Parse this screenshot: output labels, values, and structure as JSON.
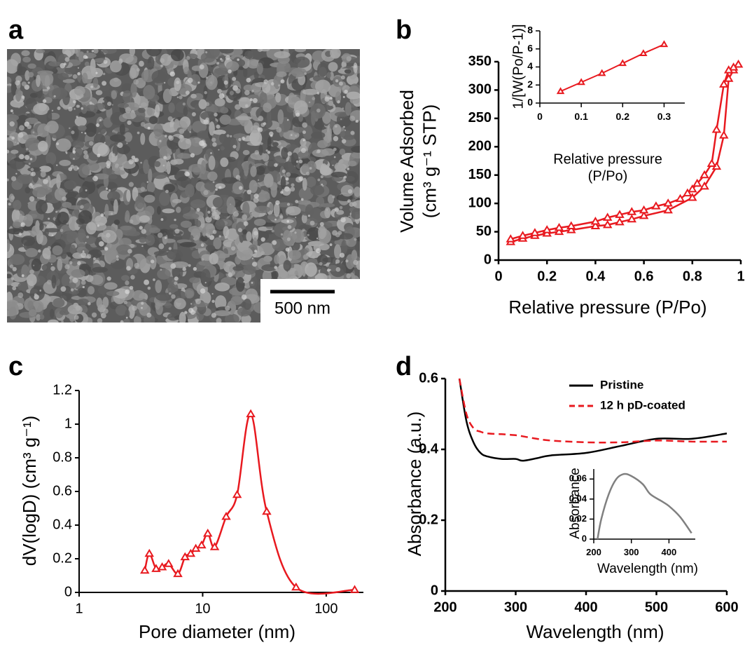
{
  "chart_data": [
    {
      "type": "image",
      "panel": "a",
      "scale_bar": "500 nm"
    },
    {
      "type": "line",
      "panel": "b",
      "x_label": "Relative pressure (P/Po)",
      "y_label": [
        "Volume Adsorbed",
        "(cm³ g⁻¹ STP)"
      ],
      "xlim": [
        0,
        1
      ],
      "ylim": [
        0,
        350
      ],
      "xticks": [
        0,
        0.2,
        0.4,
        0.6,
        0.8,
        1
      ],
      "yticks": [
        0,
        50,
        100,
        150,
        200,
        250,
        300,
        350
      ],
      "marker": "triangle",
      "series": [
        {
          "color": "#e8191f",
          "x": [
            0.05,
            0.1,
            0.15,
            0.2,
            0.25,
            0.3,
            0.4,
            0.45,
            0.5,
            0.55,
            0.6,
            0.7,
            0.8,
            0.85,
            0.9,
            0.93,
            0.95,
            0.97,
            0.99
          ],
          "values": [
            32,
            38,
            43,
            47,
            50,
            53,
            60,
            62,
            67,
            72,
            78,
            88,
            110,
            130,
            165,
            220,
            320,
            335,
            345
          ]
        },
        {
          "color": "#e8191f",
          "x": [
            0.99,
            0.97,
            0.95,
            0.93,
            0.9,
            0.88,
            0.85,
            0.82,
            0.8,
            0.78,
            0.75,
            0.7,
            0.65,
            0.6,
            0.55,
            0.5,
            0.45,
            0.4,
            0.3,
            0.25,
            0.2,
            0.15,
            0.1,
            0.05
          ],
          "values": [
            345,
            340,
            335,
            310,
            230,
            170,
            150,
            135,
            125,
            118,
            108,
            100,
            95,
            88,
            85,
            80,
            75,
            68,
            60,
            57,
            53,
            48,
            43,
            37
          ]
        }
      ],
      "inset": {
        "type": "line",
        "x_label": [
          "Relative pressure",
          "(P/Po)"
        ],
        "y_label": "1/[W(Po/P-1)]",
        "xlim": [
          0,
          0.35
        ],
        "ylim": [
          0,
          8
        ],
        "xticks": [
          0,
          0.1,
          0.2,
          0.3
        ],
        "yticks": [
          0,
          2,
          4,
          6,
          8
        ],
        "marker": "triangle",
        "series": [
          {
            "color": "#e8191f",
            "x": [
              0.05,
              0.1,
              0.15,
              0.2,
              0.25,
              0.3
            ],
            "values": [
              1.3,
              2.3,
              3.3,
              4.4,
              5.5,
              6.5
            ]
          }
        ]
      }
    },
    {
      "type": "line",
      "panel": "c",
      "x_label": "Pore diameter (nm)",
      "y_label": "dV(logD) (cm³ g⁻¹)",
      "x_scale": "log",
      "smooth": true,
      "xlim": [
        1,
        200
      ],
      "ylim": [
        0,
        1.2
      ],
      "xticks": [
        1,
        10,
        100
      ],
      "yticks": [
        0,
        0.2,
        0.4,
        0.6,
        0.8,
        1,
        1.2
      ],
      "marker": "triangle",
      "series": [
        {
          "color": "#e8191f",
          "x": [
            3.4,
            3.7,
            4.2,
            4.7,
            5.3,
            6.3,
            7.2,
            8,
            8.8,
            9.8,
            11,
            12.5,
            15.5,
            19,
            24.5,
            33,
            57,
            170
          ],
          "values": [
            0.13,
            0.23,
            0.14,
            0.15,
            0.17,
            0.11,
            0.21,
            0.23,
            0.26,
            0.28,
            0.35,
            0.27,
            0.45,
            0.58,
            1.06,
            0.48,
            0.03,
            0.015
          ]
        }
      ]
    },
    {
      "type": "line",
      "panel": "d",
      "x_label": "Wavelength (nm)",
      "y_label": "Absorbance (a.u.)",
      "smooth": true,
      "legend": "top-right",
      "xlim": [
        200,
        600
      ],
      "ylim": [
        0,
        0.6
      ],
      "xticks": [
        200,
        300,
        400,
        500,
        600
      ],
      "yticks": [
        0,
        0.2,
        0.4,
        0.6
      ],
      "x": [
        220,
        230,
        240,
        250,
        260,
        280,
        300,
        310,
        330,
        350,
        400,
        450,
        500,
        550,
        600
      ],
      "series": [
        {
          "name": "Pristine",
          "color": "#000000",
          "line_style": "solid",
          "values": [
            0.6,
            0.48,
            0.42,
            0.39,
            0.38,
            0.373,
            0.373,
            0.368,
            0.375,
            0.383,
            0.39,
            0.41,
            0.43,
            0.43,
            0.445
          ]
        },
        {
          "name": "12 h pD-coated",
          "color": "#e8191f",
          "line_style": "dashed",
          "values": [
            0.6,
            0.5,
            0.46,
            0.45,
            0.445,
            0.443,
            0.44,
            0.437,
            0.43,
            0.425,
            0.42,
            0.42,
            0.425,
            0.422,
            0.422
          ]
        }
      ],
      "inset": {
        "type": "line",
        "x_label": "Wavelength (nm)",
        "y_label": "Absorbance",
        "smooth": true,
        "xlim": [
          200,
          470
        ],
        "ylim": [
          0,
          0.07
        ],
        "xticks": [
          200,
          300,
          400
        ],
        "yticks": [
          0,
          0.02,
          0.04,
          0.06
        ],
        "series": [
          {
            "color": "#808080",
            "x": [
              210,
              220,
              240,
              260,
              280,
              300,
              330,
              350,
              380,
              400,
              430,
              460
            ],
            "values": [
              0,
              0.02,
              0.045,
              0.06,
              0.065,
              0.063,
              0.055,
              0.045,
              0.038,
              0.033,
              0.022,
              0.006
            ]
          }
        ]
      }
    }
  ]
}
